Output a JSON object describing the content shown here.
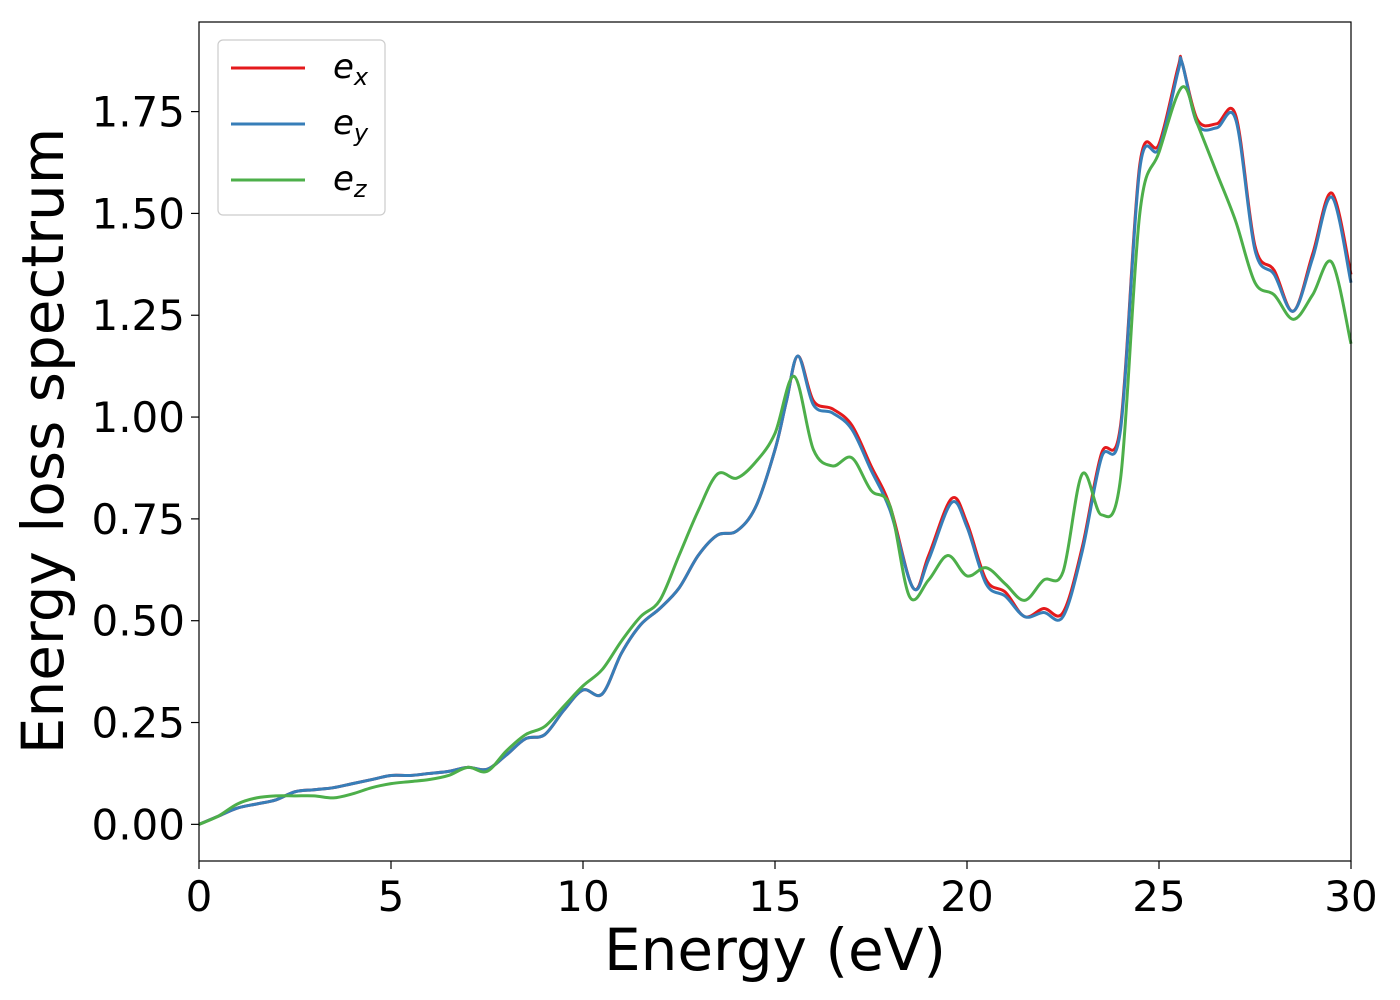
{
  "chart_data": {
    "type": "line",
    "title": "",
    "xlabel": "Energy (eV)",
    "ylabel": "Energy loss spectrum",
    "xlim": [
      0,
      30
    ],
    "ylim": [
      -0.09,
      1.97
    ],
    "xticks": [
      0,
      5,
      10,
      15,
      20,
      25,
      30
    ],
    "xtick_labels": [
      "0",
      "5",
      "10",
      "15",
      "20",
      "25",
      "30"
    ],
    "yticks": [
      0,
      0.25,
      0.5,
      0.75,
      1.0,
      1.25,
      1.5,
      1.75
    ],
    "ytick_labels": [
      "0.00",
      "0.25",
      "0.50",
      "0.75",
      "1.00",
      "1.25",
      "1.50",
      "1.75"
    ],
    "grid": false,
    "legend_position": "top-left",
    "series": [
      {
        "name": "e_x",
        "legend_main": "e",
        "legend_sub": "x",
        "color": "#e41a1c",
        "x": [
          0,
          0.5,
          1,
          1.5,
          2,
          2.5,
          3,
          3.5,
          4,
          4.5,
          5,
          5.5,
          6,
          6.5,
          7,
          7.5,
          8,
          8.5,
          9,
          9.5,
          10,
          10.5,
          11,
          11.5,
          12,
          12.5,
          13,
          13.5,
          14,
          14.5,
          15,
          15.3,
          15.6,
          16,
          16.5,
          17,
          17.5,
          18,
          18.6,
          19,
          19.6,
          20,
          20.5,
          21,
          21.5,
          22,
          22.5,
          23,
          23.5,
          24,
          24.5,
          25,
          25.5,
          25.6,
          26,
          26.5,
          27,
          27.5,
          28,
          28.5,
          29,
          29.5,
          30
        ],
        "y": [
          0.0,
          0.02,
          0.04,
          0.05,
          0.06,
          0.08,
          0.085,
          0.09,
          0.1,
          0.11,
          0.12,
          0.12,
          0.125,
          0.13,
          0.14,
          0.135,
          0.17,
          0.21,
          0.22,
          0.28,
          0.33,
          0.32,
          0.42,
          0.49,
          0.53,
          0.58,
          0.66,
          0.71,
          0.72,
          0.78,
          0.92,
          1.04,
          1.15,
          1.04,
          1.02,
          0.98,
          0.88,
          0.78,
          0.58,
          0.66,
          0.8,
          0.74,
          0.6,
          0.57,
          0.51,
          0.53,
          0.52,
          0.68,
          0.91,
          0.98,
          1.62,
          1.67,
          1.86,
          1.87,
          1.73,
          1.72,
          1.74,
          1.42,
          1.36,
          1.26,
          1.4,
          1.55,
          1.35
        ]
      },
      {
        "name": "e_y",
        "legend_main": "e",
        "legend_sub": "y",
        "color": "#377eb8",
        "x": [
          0,
          0.5,
          1,
          1.5,
          2,
          2.5,
          3,
          3.5,
          4,
          4.5,
          5,
          5.5,
          6,
          6.5,
          7,
          7.5,
          8,
          8.5,
          9,
          9.5,
          10,
          10.5,
          11,
          11.5,
          12,
          12.5,
          13,
          13.5,
          14,
          14.5,
          15,
          15.3,
          15.6,
          16,
          16.5,
          17,
          17.5,
          18,
          18.6,
          19,
          19.6,
          20,
          20.5,
          21,
          21.5,
          22,
          22.5,
          23,
          23.5,
          24,
          24.5,
          25,
          25.5,
          25.6,
          26,
          26.5,
          27,
          27.5,
          28,
          28.5,
          29,
          29.5,
          30
        ],
        "y": [
          0.0,
          0.02,
          0.04,
          0.05,
          0.06,
          0.08,
          0.085,
          0.09,
          0.1,
          0.11,
          0.12,
          0.12,
          0.125,
          0.13,
          0.14,
          0.135,
          0.17,
          0.21,
          0.22,
          0.28,
          0.33,
          0.32,
          0.42,
          0.49,
          0.53,
          0.58,
          0.66,
          0.71,
          0.72,
          0.78,
          0.92,
          1.04,
          1.15,
          1.03,
          1.01,
          0.97,
          0.87,
          0.77,
          0.58,
          0.65,
          0.79,
          0.73,
          0.59,
          0.56,
          0.51,
          0.52,
          0.51,
          0.67,
          0.9,
          0.97,
          1.61,
          1.66,
          1.85,
          1.87,
          1.72,
          1.71,
          1.73,
          1.41,
          1.35,
          1.26,
          1.39,
          1.54,
          1.33
        ]
      },
      {
        "name": "e_z",
        "legend_main": "e",
        "legend_sub": "z",
        "color": "#4daf4a",
        "x": [
          0,
          0.5,
          1,
          1.5,
          2,
          2.5,
          3,
          3.5,
          4,
          4.5,
          5,
          5.5,
          6,
          6.5,
          7,
          7.5,
          8,
          8.5,
          9,
          9.5,
          10,
          10.5,
          11,
          11.5,
          12,
          12.5,
          13,
          13.5,
          14,
          14.5,
          15,
          15.5,
          16,
          16.5,
          17,
          17.5,
          18,
          18.5,
          19,
          19.5,
          20,
          20.5,
          21,
          21.5,
          22,
          22.5,
          23,
          23.5,
          24,
          24.5,
          25,
          25.6,
          26,
          26.5,
          27,
          27.5,
          28,
          28.5,
          29,
          29.5,
          30
        ],
        "y": [
          0.0,
          0.02,
          0.05,
          0.065,
          0.07,
          0.07,
          0.07,
          0.065,
          0.075,
          0.09,
          0.1,
          0.105,
          0.11,
          0.12,
          0.14,
          0.13,
          0.18,
          0.22,
          0.24,
          0.29,
          0.34,
          0.38,
          0.45,
          0.51,
          0.55,
          0.66,
          0.77,
          0.86,
          0.85,
          0.89,
          0.96,
          1.1,
          0.92,
          0.88,
          0.9,
          0.82,
          0.78,
          0.56,
          0.6,
          0.66,
          0.61,
          0.63,
          0.59,
          0.55,
          0.6,
          0.62,
          0.86,
          0.76,
          0.85,
          1.5,
          1.65,
          1.81,
          1.72,
          1.6,
          1.48,
          1.33,
          1.3,
          1.24,
          1.3,
          1.38,
          1.18
        ]
      }
    ]
  }
}
